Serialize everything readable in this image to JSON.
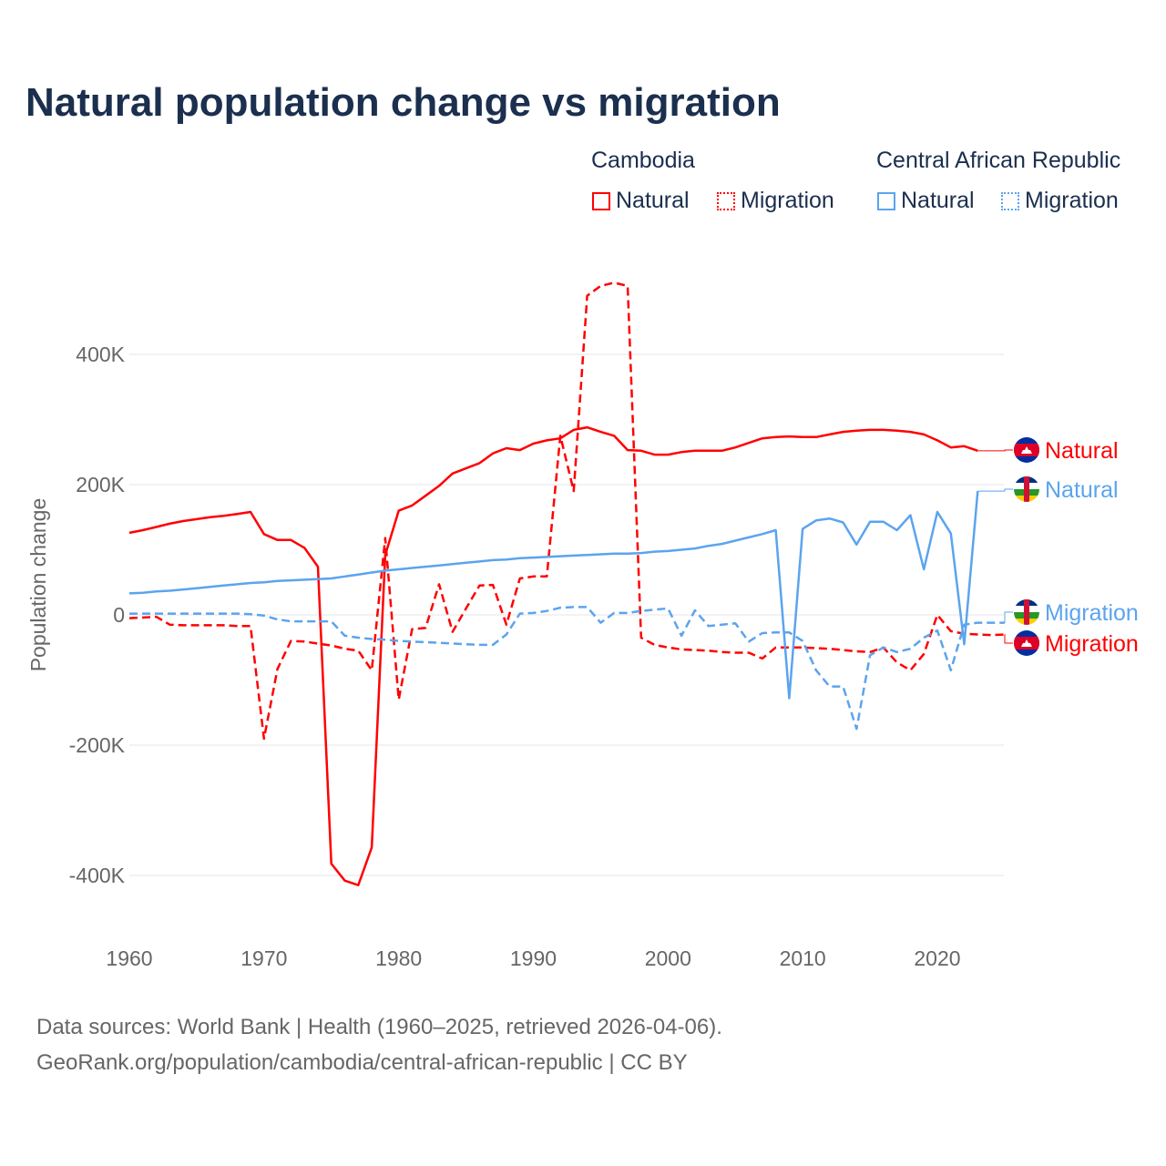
{
  "chart_data": {
    "type": "line",
    "title": "Natural population change vs migration",
    "ylabel": "Population change",
    "xlabel": "",
    "xlim": [
      1960,
      2025
    ],
    "ylim": [
      -450000,
      520000
    ],
    "x_ticks": [
      1960,
      1970,
      1980,
      1990,
      2000,
      2010,
      2020
    ],
    "x_tick_labels": [
      "1960",
      "1970",
      "1980",
      "1990",
      "2000",
      "2010",
      "2020"
    ],
    "y_ticks": [
      -400000,
      -200000,
      0,
      200000,
      400000
    ],
    "y_tick_labels": [
      "-400K",
      "-200K",
      "0",
      "200K",
      "400K"
    ],
    "grid": true,
    "legend": {
      "placement": "top-right",
      "groups": [
        {
          "country": "Cambodia",
          "items": [
            "Natural",
            "Migration"
          ]
        },
        {
          "country": "Central African Republic",
          "items": [
            "Natural",
            "Migration"
          ]
        }
      ]
    },
    "series": [
      {
        "name": "Natural",
        "country": "Cambodia",
        "color": "#ff0000",
        "dash": false,
        "start_year": 1960,
        "values_k": [
          126,
          130,
          135,
          140,
          144,
          147,
          150,
          152,
          155,
          158,
          124,
          115,
          115,
          103,
          74,
          -382,
          -408,
          -415,
          -357,
          92,
          160,
          168,
          183,
          198,
          217,
          225,
          233,
          248,
          256,
          253,
          263,
          268,
          271,
          284,
          288,
          281,
          275,
          253,
          252,
          246,
          246,
          250,
          252,
          252,
          252,
          257,
          264,
          271,
          273,
          274,
          273,
          273,
          277,
          281,
          283,
          284,
          284,
          283,
          281,
          277,
          268,
          257,
          259,
          252
        ]
      },
      {
        "name": "Migration",
        "country": "Cambodia",
        "color": "#ff0000",
        "dash": true,
        "start_year": 1960,
        "values_k": [
          -5,
          -4,
          -3,
          -15,
          -16,
          -16,
          -16,
          -16,
          -17,
          -17,
          -190,
          -83,
          -40,
          -41,
          -44,
          -47,
          -52,
          -55,
          -85,
          118,
          -130,
          -22,
          -20,
          47,
          -26,
          10,
          45,
          46,
          -15,
          56,
          59,
          59,
          275,
          190,
          490,
          505,
          510,
          505,
          -35,
          -46,
          -50,
          -53,
          -54,
          -55,
          -57,
          -58,
          -58,
          -67,
          -50,
          -50,
          -50,
          -51,
          -52,
          -54,
          -56,
          -57,
          -50,
          -73,
          -85,
          -60,
          0,
          -25,
          -29,
          -30,
          -31,
          -30
        ]
      },
      {
        "name": "Natural",
        "country": "Central African Republic",
        "color": "#5ba4ee",
        "dash": false,
        "start_year": 1960,
        "values_k": [
          33,
          34,
          36,
          37,
          39,
          41,
          43,
          45,
          47,
          49,
          50,
          52,
          53,
          54,
          55,
          56,
          59,
          62,
          65,
          68,
          70,
          72,
          74,
          76,
          78,
          80,
          82,
          84,
          85,
          87,
          88,
          89,
          90,
          91,
          92,
          93,
          94,
          94,
          95,
          97,
          98,
          100,
          102,
          106,
          109,
          114,
          119,
          124,
          130,
          -128,
          132,
          145,
          148,
          142,
          108,
          143,
          143,
          130,
          153,
          70,
          158,
          125,
          -45,
          190
        ]
      },
      {
        "name": "Migration",
        "country": "Central African Republic",
        "color": "#5ba4ee",
        "dash": true,
        "start_year": 1960,
        "values_k": [
          2,
          2,
          2,
          2,
          2,
          2,
          2,
          2,
          2,
          1,
          -1,
          -7,
          -10,
          -10,
          -10,
          -10,
          -32,
          -35,
          -37,
          -38,
          -40,
          -41,
          -42,
          -43,
          -44,
          -45,
          -46,
          -46,
          -30,
          2,
          3,
          6,
          11,
          12,
          12,
          -12,
          3,
          3,
          6,
          8,
          10,
          -32,
          7,
          -17,
          -15,
          -13,
          -41,
          -28,
          -27,
          -27,
          -40,
          -85,
          -110,
          -110,
          -175,
          -62,
          -50,
          -57,
          -52,
          -35,
          -24,
          -85,
          -15,
          -12,
          -12,
          -12
        ]
      }
    ],
    "end_labels": [
      {
        "text": "Natural",
        "country": "Cambodia"
      },
      {
        "text": "Natural",
        "country": "Central African Republic"
      },
      {
        "text": "Migration",
        "country": "Central African Republic"
      },
      {
        "text": "Migration",
        "country": "Cambodia"
      }
    ]
  },
  "legend_labels": {
    "cambodia": "Cambodia",
    "car": "Central African Republic",
    "natural": "Natural",
    "migration": "Migration"
  },
  "footer": {
    "line1": "Data sources: World Bank | Health (1960–2025, retrieved 2026-04-06).",
    "line2": "GeoRank.org/population/cambodia/central-african-republic | CC BY"
  }
}
